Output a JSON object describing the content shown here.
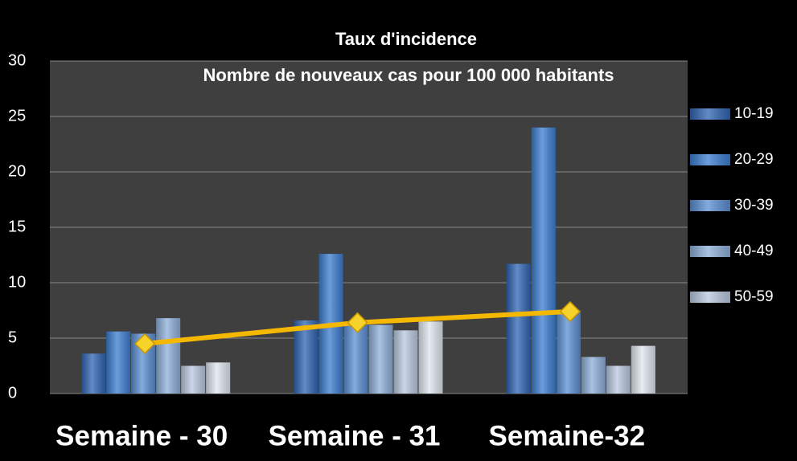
{
  "chart_data": {
    "type": "bar",
    "title": "Taux d'incidence",
    "subtitle": "Nombre de nouveaux cas pour 100 000 habitants",
    "categories": [
      "Semaine - 30",
      "Semaine - 31",
      "Semaine-32"
    ],
    "series": [
      {
        "name": "10-19",
        "color": "#2f65b3",
        "values": [
          3.6,
          6.6,
          11.7
        ]
      },
      {
        "name": "20-29",
        "color": "#3b7dd0",
        "values": [
          5.6,
          12.6,
          24.0
        ]
      },
      {
        "name": "30-39",
        "color": "#5b8ed3",
        "values": [
          5.4,
          6.3,
          7.5
        ]
      },
      {
        "name": "40-49",
        "color": "#8eafd9",
        "values": [
          6.8,
          6.2,
          3.3
        ]
      },
      {
        "name": "50-59",
        "color": "#b9c9df",
        "values": [
          2.5,
          5.7,
          2.5
        ]
      },
      {
        "color": "#dfe5ee",
        "values": [
          2.8,
          6.5,
          4.3
        ]
      },
      {
        "type": "line",
        "color": "#f5b800",
        "values": [
          4.5,
          6.4,
          7.4
        ]
      }
    ],
    "ylim": [
      0,
      30
    ],
    "yticks": [
      0,
      5,
      10,
      15,
      20,
      25,
      30
    ],
    "grid": true,
    "legend": "right"
  }
}
